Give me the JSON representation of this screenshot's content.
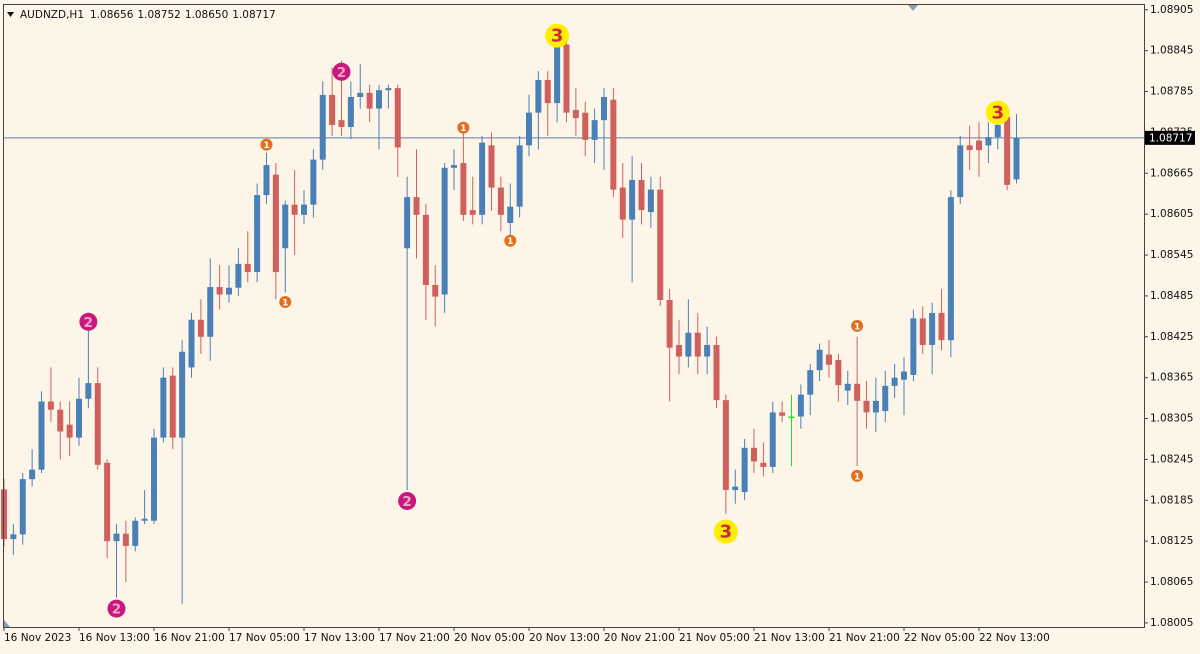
{
  "chart_data": {
    "type": "candlestick",
    "symbol": "AUDNZD,H1",
    "header_ohlc": [
      "1.08656",
      "1.08752",
      "1.08650",
      "1.08717"
    ],
    "categories": [
      "16 Nov 2023",
      null,
      null,
      null,
      null,
      null,
      null,
      null,
      "16 Nov 13:00",
      null,
      null,
      null,
      null,
      null,
      null,
      null,
      "16 Nov 21:00",
      null,
      null,
      null,
      null,
      null,
      null,
      null,
      "17 Nov 05:00",
      null,
      null,
      null,
      null,
      null,
      null,
      null,
      "17 Nov 13:00",
      null,
      null,
      null,
      null,
      null,
      null,
      null,
      "17 Nov 21:00",
      null,
      null,
      null,
      null,
      null,
      null,
      null,
      "20 Nov 05:00",
      null,
      null,
      null,
      null,
      null,
      null,
      null,
      "20 Nov 13:00",
      null,
      null,
      null,
      null,
      null,
      null,
      null,
      "20 Nov 21:00",
      null,
      null,
      null,
      null,
      null,
      null,
      null,
      "21 Nov 05:00",
      null,
      null,
      null,
      null,
      null,
      null,
      null,
      "21 Nov 13:00",
      null,
      null,
      null,
      null,
      null,
      null,
      null,
      "21 Nov 21:00",
      null,
      null,
      null,
      null,
      null,
      null,
      null,
      "22 Nov 05:00",
      null,
      null,
      null,
      null,
      null,
      null,
      null,
      "22 Nov 13:00",
      null,
      null,
      null,
      null
    ],
    "open": [
      1.08201,
      1.08128,
      1.08135,
      1.08216,
      1.0823,
      1.0833,
      1.08318,
      1.08296,
      1.08277,
      1.08334,
      1.08357,
      1.0824,
      1.08125,
      1.08136,
      1.08118,
      1.08155,
      1.08155,
      1.08277,
      1.08368,
      1.08277,
      1.0838,
      1.0845,
      1.08425,
      1.08498,
      1.08487,
      1.08497,
      1.08532,
      1.0852,
      1.08633,
      1.08663,
      1.08555,
      1.08619,
      1.08604,
      1.08619,
      1.08685,
      1.0878,
      1.08743,
      1.08733,
      1.08777,
      1.08783,
      1.0876,
      1.08787,
      1.0879,
      1.08555,
      1.0863,
      1.08604,
      1.08501,
      1.08487,
      1.08673,
      1.0868,
      1.08611,
      1.08604,
      1.08706,
      1.08644,
      1.08592,
      1.08616,
      1.08706,
      1.08754,
      1.08802,
      1.08768,
      1.08854,
      1.08758,
      1.08754,
      1.08714,
      1.08743,
      1.08773,
      1.08644,
      1.08597,
      1.08655,
      1.08608,
      1.08641,
      1.08479,
      1.08413,
      1.08396,
      1.08431,
      1.08396,
      1.08413,
      1.08332,
      1.082,
      1.08197,
      1.08262,
      1.0824,
      1.08234,
      1.08314,
      1.08308,
      1.08308,
      1.0834,
      1.08376,
      1.08399,
      1.08391,
      1.08346,
      1.08356,
      1.08331,
      1.08314,
      1.08316,
      1.08353,
      1.08362,
      1.08369,
      1.08452,
      1.08413,
      1.0846,
      1.0842,
      1.0863,
      1.08706,
      1.08713,
      1.08706,
      1.08718,
      1.08748,
      1.08656
    ],
    "high": [
      1.08216,
      1.0815,
      1.08225,
      1.0826,
      1.08345,
      1.0838,
      1.0833,
      1.0833,
      1.08365,
      1.0845,
      1.0838,
      1.08245,
      1.0815,
      1.08155,
      1.0816,
      1.082,
      1.0829,
      1.0838,
      1.0838,
      1.0842,
      1.0846,
      1.0848,
      1.0854,
      1.0853,
      1.0853,
      1.08555,
      1.0858,
      1.0865,
      1.08695,
      1.0868,
      1.08625,
      1.0867,
      1.0864,
      1.087,
      1.088,
      1.0882,
      1.0883,
      1.088,
      1.08825,
      1.08795,
      1.08795,
      1.08795,
      1.08795,
      1.0866,
      1.087,
      1.0862,
      1.0853,
      1.0868,
      1.087,
      1.08725,
      1.0866,
      1.0872,
      1.08725,
      1.0866,
      1.0865,
      1.0872,
      1.0878,
      1.08815,
      1.08815,
      1.0887,
      1.0886,
      1.0879,
      1.0877,
      1.0876,
      1.0879,
      1.0879,
      1.0868,
      1.0869,
      1.0868,
      1.0866,
      1.0866,
      1.08495,
      1.0845,
      1.0848,
      1.0846,
      1.0844,
      1.08425,
      1.0834,
      1.0823,
      1.08275,
      1.0829,
      1.0827,
      1.0833,
      1.0833,
      1.0834,
      1.08355,
      1.08385,
      1.08415,
      1.0842,
      1.084,
      1.08375,
      1.08425,
      1.0836,
      1.08365,
      1.08375,
      1.08385,
      1.08395,
      1.08465,
      1.0847,
      1.08475,
      1.08495,
      1.0864,
      1.0872,
      1.08735,
      1.0874,
      1.0874,
      1.0875,
      1.08757,
      1.08752
    ],
    "low": [
      1.08116,
      1.08105,
      1.0812,
      1.08205,
      1.08225,
      1.083,
      1.08245,
      1.0825,
      1.08265,
      1.0832,
      1.0823,
      1.081,
      1.08042,
      1.08065,
      1.0811,
      1.0815,
      1.0815,
      1.0827,
      1.0826,
      1.08033,
      1.08365,
      1.084,
      1.0839,
      1.08465,
      1.08475,
      1.08485,
      1.08505,
      1.08505,
      1.0862,
      1.0848,
      1.0849,
      1.08545,
      1.0859,
      1.086,
      1.0867,
      1.0872,
      1.0872,
      1.08715,
      1.0876,
      1.0874,
      1.087,
      1.0876,
      1.0866,
      1.082,
      1.0854,
      1.0845,
      1.0844,
      1.0846,
      1.0864,
      1.08595,
      1.0859,
      1.0859,
      1.0861,
      1.0858,
      1.0857,
      1.086,
      1.0869,
      1.087,
      1.0872,
      1.0874,
      1.0874,
      1.0872,
      1.0869,
      1.0868,
      1.0867,
      1.0863,
      1.0857,
      1.08505,
      1.0859,
      1.08585,
      1.0847,
      1.0833,
      1.0837,
      1.0838,
      1.0837,
      1.0837,
      1.0832,
      1.08165,
      1.0818,
      1.08185,
      1.08225,
      1.0822,
      1.08225,
      1.083,
      1.08235,
      1.0829,
      1.0831,
      1.0836,
      1.08365,
      1.0833,
      1.08325,
      1.08235,
      1.0829,
      1.08285,
      1.083,
      1.08335,
      1.0831,
      1.0836,
      1.084,
      1.0837,
      1.08405,
      1.08395,
      1.0862,
      1.0867,
      1.0866,
      1.0868,
      1.087,
      1.0864,
      1.0865
    ],
    "close": [
      1.08128,
      1.08135,
      1.08216,
      1.0823,
      1.0833,
      1.08318,
      1.08286,
      1.08277,
      1.08334,
      1.08357,
      1.08237,
      1.08125,
      1.08136,
      1.08118,
      1.08155,
      1.08158,
      1.08277,
      1.08365,
      1.08277,
      1.08403,
      1.0845,
      1.08425,
      1.08498,
      1.08487,
      1.08497,
      1.08532,
      1.0852,
      1.08633,
      1.08677,
      1.0852,
      1.08619,
      1.08604,
      1.08619,
      1.08685,
      1.0878,
      1.08736,
      1.08733,
      1.08777,
      1.08783,
      1.0876,
      1.08787,
      1.0879,
      1.08703,
      1.0863,
      1.08604,
      1.08501,
      1.08484,
      1.08673,
      1.08677,
      1.08604,
      1.08604,
      1.0871,
      1.08644,
      1.08604,
      1.08616,
      1.08706,
      1.08754,
      1.08802,
      1.08768,
      1.08854,
      1.08754,
      1.08746,
      1.08714,
      1.08743,
      1.08777,
      1.08641,
      1.08597,
      1.08655,
      1.08611,
      1.08641,
      1.08479,
      1.08409,
      1.08396,
      1.08431,
      1.08396,
      1.08413,
      1.08332,
      1.082,
      1.08205,
      1.08262,
      1.08242,
      1.08234,
      1.08314,
      1.08309,
      1.08308,
      1.0834,
      1.08376,
      1.08406,
      1.08384,
      1.08354,
      1.08356,
      1.08331,
      1.08314,
      1.08331,
      1.08353,
      1.08365,
      1.08374,
      1.08452,
      1.08413,
      1.0846,
      1.0842,
      1.0863,
      1.08706,
      1.08699,
      1.08699,
      1.08718,
      1.08736,
      1.08648,
      1.08717
    ],
    "up_color": "#4a80b8",
    "down_color": "#d0605e",
    "doji_color": "#22dd22",
    "ylim": [
      1.07999,
      1.08912
    ],
    "yticks": [
      1.08905,
      1.08845,
      1.08785,
      1.08725,
      1.08665,
      1.08605,
      1.08545,
      1.08485,
      1.08425,
      1.08365,
      1.08305,
      1.08245,
      1.08185,
      1.08125,
      1.08065,
      1.08005
    ],
    "current_price": 1.08717,
    "current_price_color": "#7d96b4",
    "markers": [
      {
        "candle": 9,
        "value": 1.08447,
        "label": "2",
        "color": "#c8187e",
        "text_color": "#f4a6c8"
      },
      {
        "candle": 12,
        "value": 1.08026,
        "label": "2",
        "color": "#c8187e",
        "text_color": "#f4a6c8"
      },
      {
        "candle": 28,
        "value": 1.08707,
        "label": "1",
        "color": "#e0701e",
        "text_color": "#ffffff"
      },
      {
        "candle": 30,
        "value": 1.08476,
        "label": "1",
        "color": "#e0701e",
        "text_color": "#ffffff"
      },
      {
        "candle": 36,
        "value": 1.08814,
        "label": "2",
        "color": "#c8187e",
        "text_color": "#f4a6c8"
      },
      {
        "candle": 43,
        "value": 1.08184,
        "label": "2",
        "color": "#c8187e",
        "text_color": "#f4a6c8"
      },
      {
        "candle": 49,
        "value": 1.08732,
        "label": "1",
        "color": "#e0701e",
        "text_color": "#ffffff"
      },
      {
        "candle": 54,
        "value": 1.08566,
        "label": "1",
        "color": "#e0701e",
        "text_color": "#ffffff"
      },
      {
        "candle": 59,
        "value": 1.08867,
        "label": "3",
        "color": "#ffee00",
        "text_color": "#d0283c"
      },
      {
        "candle": 77,
        "value": 1.08139,
        "label": "3",
        "color": "#ffee00",
        "text_color": "#d0283c"
      },
      {
        "candle": 91,
        "value": 1.08441,
        "label": "1",
        "color": "#e0701e",
        "text_color": "#ffffff"
      },
      {
        "candle": 91,
        "value": 1.08221,
        "label": "1",
        "color": "#e0701e",
        "text_color": "#ffffff"
      },
      {
        "candle": 106,
        "value": 1.08754,
        "label": "3",
        "color": "#ffee00",
        "text_color": "#d0283c"
      }
    ]
  }
}
